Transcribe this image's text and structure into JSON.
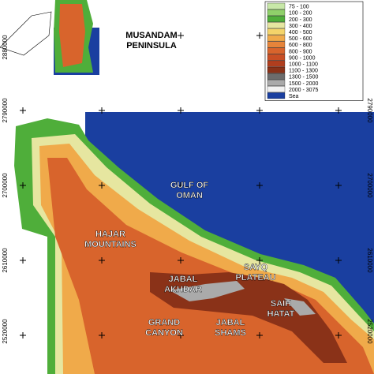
{
  "map": {
    "legend": {
      "items": [
        {
          "label": "75 - 100",
          "color": "#c8e8a8"
        },
        {
          "label": "100 - 200",
          "color": "#8fd06a"
        },
        {
          "label": "200 - 300",
          "color": "#4fae3a"
        },
        {
          "label": "300 - 400",
          "color": "#e6e6a0"
        },
        {
          "label": "400 - 500",
          "color": "#f4d46a"
        },
        {
          "label": "500 - 600",
          "color": "#f0aa4a"
        },
        {
          "label": "600 - 800",
          "color": "#e6843a"
        },
        {
          "label": "800 - 900",
          "color": "#d8642c"
        },
        {
          "label": "900 - 1000",
          "color": "#c84e24"
        },
        {
          "label": "1000 - 1100",
          "color": "#b03e1e"
        },
        {
          "label": "1100 - 1300",
          "color": "#8a3218"
        },
        {
          "label": "1300 - 1500",
          "color": "#6c6c6c"
        },
        {
          "label": "1500 - 2000",
          "color": "#aaaaaa"
        },
        {
          "label": "2000 - 3075",
          "color": "#f2f2f2"
        },
        {
          "label": "Sea",
          "color": "#1a3fa0"
        }
      ]
    },
    "labels": [
      "MUSANDAM",
      "PENINSULA",
      "GULF OF",
      "OMAN",
      "HAJAR",
      "MOUNTAINS",
      "JABAL",
      "AKHDAR",
      "SAYQ",
      "PLATEAU",
      "SAIH",
      "HATAT",
      "GRAND",
      "CANYON",
      "JABAL",
      "SHAMS"
    ],
    "left_ticks": [
      "2880000",
      "2790000",
      "2700000",
      "2610000",
      "2520000"
    ],
    "right_ticks": [
      "2790000",
      "2700000",
      "2610000",
      "2520000"
    ]
  }
}
